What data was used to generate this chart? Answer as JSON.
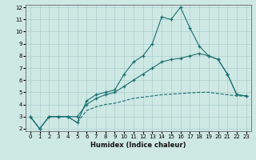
{
  "title": "",
  "xlabel": "Humidex (Indice chaleur)",
  "ylabel": "",
  "background_color": "#cee8e4",
  "grid_color": "#aacece",
  "line_color": "#1a7070",
  "xlim": [
    -0.5,
    23.5
  ],
  "ylim": [
    1.8,
    12.2
  ],
  "xticks": [
    0,
    1,
    2,
    3,
    4,
    5,
    6,
    7,
    8,
    9,
    10,
    11,
    12,
    13,
    14,
    15,
    16,
    17,
    18,
    19,
    20,
    21,
    22,
    23
  ],
  "yticks": [
    2,
    3,
    4,
    5,
    6,
    7,
    8,
    9,
    10,
    11,
    12
  ],
  "series": [
    {
      "x": [
        0,
        1,
        2,
        3,
        4,
        5,
        6,
        7,
        8,
        9,
        10,
        11,
        12,
        13,
        14,
        15,
        16,
        17,
        18,
        19,
        20,
        21,
        22,
        23
      ],
      "y": [
        3,
        2,
        3,
        3,
        3,
        2.5,
        4.3,
        4.8,
        5.0,
        5.2,
        6.5,
        7.5,
        8.0,
        9.0,
        11.2,
        11.0,
        12.0,
        10.3,
        8.8,
        8.0,
        7.7,
        6.5,
        4.8,
        4.7
      ],
      "linestyle": "-",
      "marker": "+"
    },
    {
      "x": [
        0,
        1,
        2,
        3,
        4,
        5,
        6,
        7,
        8,
        9,
        10,
        11,
        12,
        13,
        14,
        15,
        16,
        17,
        18,
        19,
        20,
        21,
        22,
        23
      ],
      "y": [
        3,
        2,
        3,
        3,
        3,
        3,
        4.0,
        4.5,
        4.8,
        5.0,
        5.5,
        6.0,
        6.5,
        7.0,
        7.5,
        7.7,
        7.8,
        8.0,
        8.2,
        8.0,
        7.7,
        6.5,
        4.8,
        4.7
      ],
      "linestyle": "-",
      "marker": "+"
    },
    {
      "x": [
        0,
        1,
        2,
        3,
        4,
        5,
        6,
        7,
        8,
        9,
        10,
        11,
        12,
        13,
        14,
        15,
        16,
        17,
        18,
        19,
        20,
        21,
        22,
        23
      ],
      "y": [
        3,
        2,
        3,
        3,
        3,
        2.5,
        3.5,
        3.8,
        4.0,
        4.1,
        4.3,
        4.5,
        4.6,
        4.7,
        4.8,
        4.85,
        4.9,
        4.95,
        5.0,
        5.0,
        4.9,
        4.8,
        4.7,
        4.7
      ],
      "linestyle": "--",
      "marker": null
    }
  ],
  "xlabel_fontsize": 6,
  "tick_fontsize": 5
}
